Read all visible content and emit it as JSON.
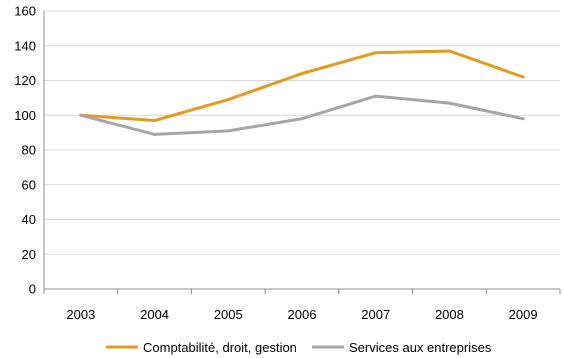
{
  "chart_data": {
    "type": "line",
    "title": "",
    "xlabel": "",
    "ylabel": "",
    "x": [
      "2003",
      "2004",
      "2005",
      "2006",
      "2007",
      "2008",
      "2009"
    ],
    "ylim": [
      0,
      160
    ],
    "yticks": [
      0,
      20,
      40,
      60,
      80,
      100,
      120,
      140,
      160
    ],
    "grid": true,
    "legend_position": "bottom",
    "series": [
      {
        "name": "Comptabilité, droit, gestion",
        "color": "#E39A1E",
        "values": [
          100,
          97,
          109,
          124,
          136,
          137,
          122
        ]
      },
      {
        "name": "Services aux entreprises",
        "color": "#A6A6A6",
        "values": [
          100,
          89,
          91,
          98,
          111,
          107,
          98
        ]
      }
    ]
  }
}
